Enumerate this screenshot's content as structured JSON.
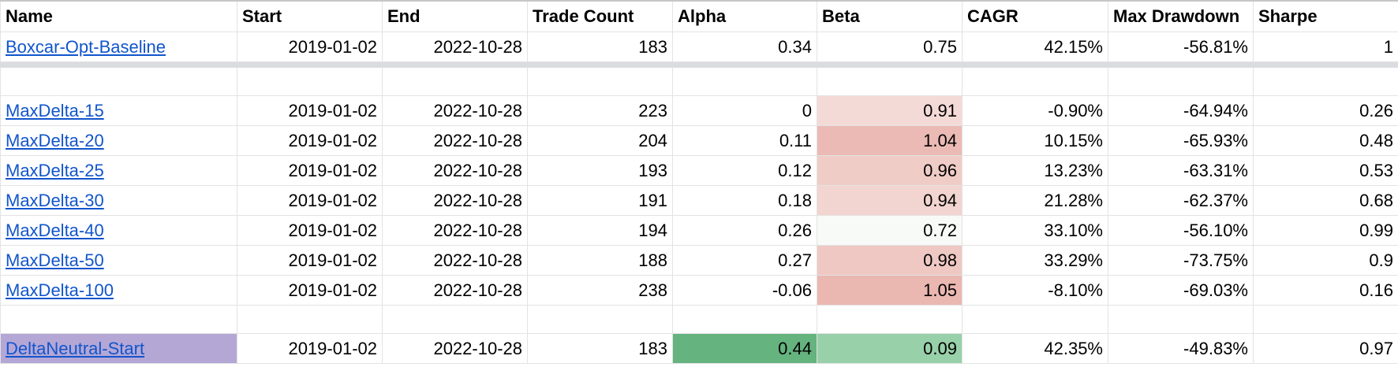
{
  "table": {
    "header": [
      "Name",
      "Start",
      "End",
      "Trade Count",
      "Alpha",
      "Beta",
      "CAGR",
      "Max Drawdown",
      "Sharpe"
    ],
    "rows": [
      [
        "Boxcar-Opt-Baseline",
        "2019-01-02",
        "2022-10-28",
        "183",
        "0.34",
        "0.75",
        "42.15%",
        "-56.81%",
        "1"
      ],
      [
        "MaxDelta-15",
        "2019-01-02",
        "2022-10-28",
        "223",
        "0",
        "0.91",
        "-0.90%",
        "-64.94%",
        "0.26"
      ],
      [
        "MaxDelta-20",
        "2019-01-02",
        "2022-10-28",
        "204",
        "0.11",
        "1.04",
        "10.15%",
        "-65.93%",
        "0.48"
      ],
      [
        "MaxDelta-25",
        "2019-01-02",
        "2022-10-28",
        "193",
        "0.12",
        "0.96",
        "13.23%",
        "-63.31%",
        "0.53"
      ],
      [
        "MaxDelta-30",
        "2019-01-02",
        "2022-10-28",
        "191",
        "0.18",
        "0.94",
        "21.28%",
        "-62.37%",
        "0.68"
      ],
      [
        "MaxDelta-40",
        "2019-01-02",
        "2022-10-28",
        "194",
        "0.26",
        "0.72",
        "33.10%",
        "-56.10%",
        "0.99"
      ],
      [
        "MaxDelta-50",
        "2019-01-02",
        "2022-10-28",
        "188",
        "0.27",
        "0.98",
        "33.29%",
        "-73.75%",
        "0.9"
      ],
      [
        "MaxDelta-100",
        "2019-01-02",
        "2022-10-28",
        "238",
        "-0.06",
        "1.05",
        "-8.10%",
        "-69.03%",
        "0.16"
      ],
      [
        "DeltaNeutral-Start",
        "2019-01-02",
        "2022-10-28",
        "183",
        "0.44",
        "0.09",
        "42.35%",
        "-49.83%",
        "0.97"
      ]
    ]
  }
}
